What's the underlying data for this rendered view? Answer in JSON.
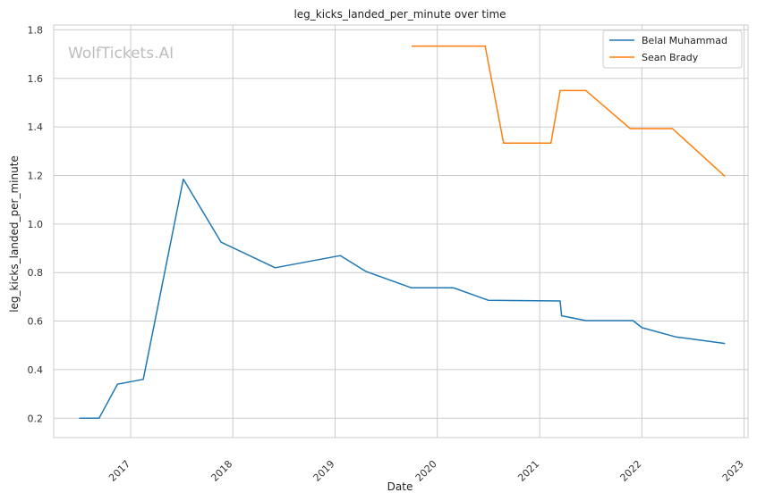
{
  "watermark": "WolfTickets.AI",
  "colors": {
    "grid": "#cccccc",
    "frame": "#cccccc",
    "text": "#333333"
  },
  "chart_data": {
    "type": "line",
    "title": "leg_kicks_landed_per_minute over time",
    "xlabel": "Date",
    "ylabel": "leg_kicks_landed_per_minute",
    "xlim": [
      "2016-04-01",
      "2023-01-15"
    ],
    "ylim": [
      0.12,
      1.82
    ],
    "x_ticks": [
      "2017",
      "2018",
      "2019",
      "2020",
      "2021",
      "2022",
      "2023"
    ],
    "y_ticks": [
      "0.2",
      "0.4",
      "0.6",
      "0.8",
      "1.0",
      "1.2",
      "1.4",
      "1.6",
      "1.8"
    ],
    "grid": true,
    "legend_position": "top-right",
    "series": [
      {
        "name": "Belal Muhammad",
        "color": "#1f77b4",
        "points": [
          [
            "2016-07-01",
            0.2
          ],
          [
            "2016-09-10",
            0.2
          ],
          [
            "2016-11-15",
            0.34
          ],
          [
            "2017-02-15",
            0.36
          ],
          [
            "2017-07-08",
            1.185
          ],
          [
            "2017-11-20",
            0.925
          ],
          [
            "2018-06-01",
            0.82
          ],
          [
            "2019-01-20",
            0.87
          ],
          [
            "2019-04-20",
            0.805
          ],
          [
            "2019-10-01",
            0.737
          ],
          [
            "2020-02-28",
            0.737
          ],
          [
            "2020-07-01",
            0.686
          ],
          [
            "2021-03-15",
            0.683
          ],
          [
            "2021-03-20",
            0.622
          ],
          [
            "2021-06-15",
            0.602
          ],
          [
            "2021-11-30",
            0.602
          ],
          [
            "2022-01-01",
            0.573
          ],
          [
            "2022-05-01",
            0.535
          ],
          [
            "2022-10-25",
            0.508
          ]
        ]
      },
      {
        "name": "Sean Brady",
        "color": "#ff7f0e",
        "points": [
          [
            "2019-10-01",
            1.733
          ],
          [
            "2020-06-20",
            1.733
          ],
          [
            "2020-08-25",
            1.333
          ],
          [
            "2021-02-10",
            1.333
          ],
          [
            "2021-03-15",
            1.55
          ],
          [
            "2021-06-15",
            1.55
          ],
          [
            "2021-11-20",
            1.393
          ],
          [
            "2022-04-20",
            1.393
          ],
          [
            "2022-10-25",
            1.196
          ]
        ]
      }
    ]
  }
}
